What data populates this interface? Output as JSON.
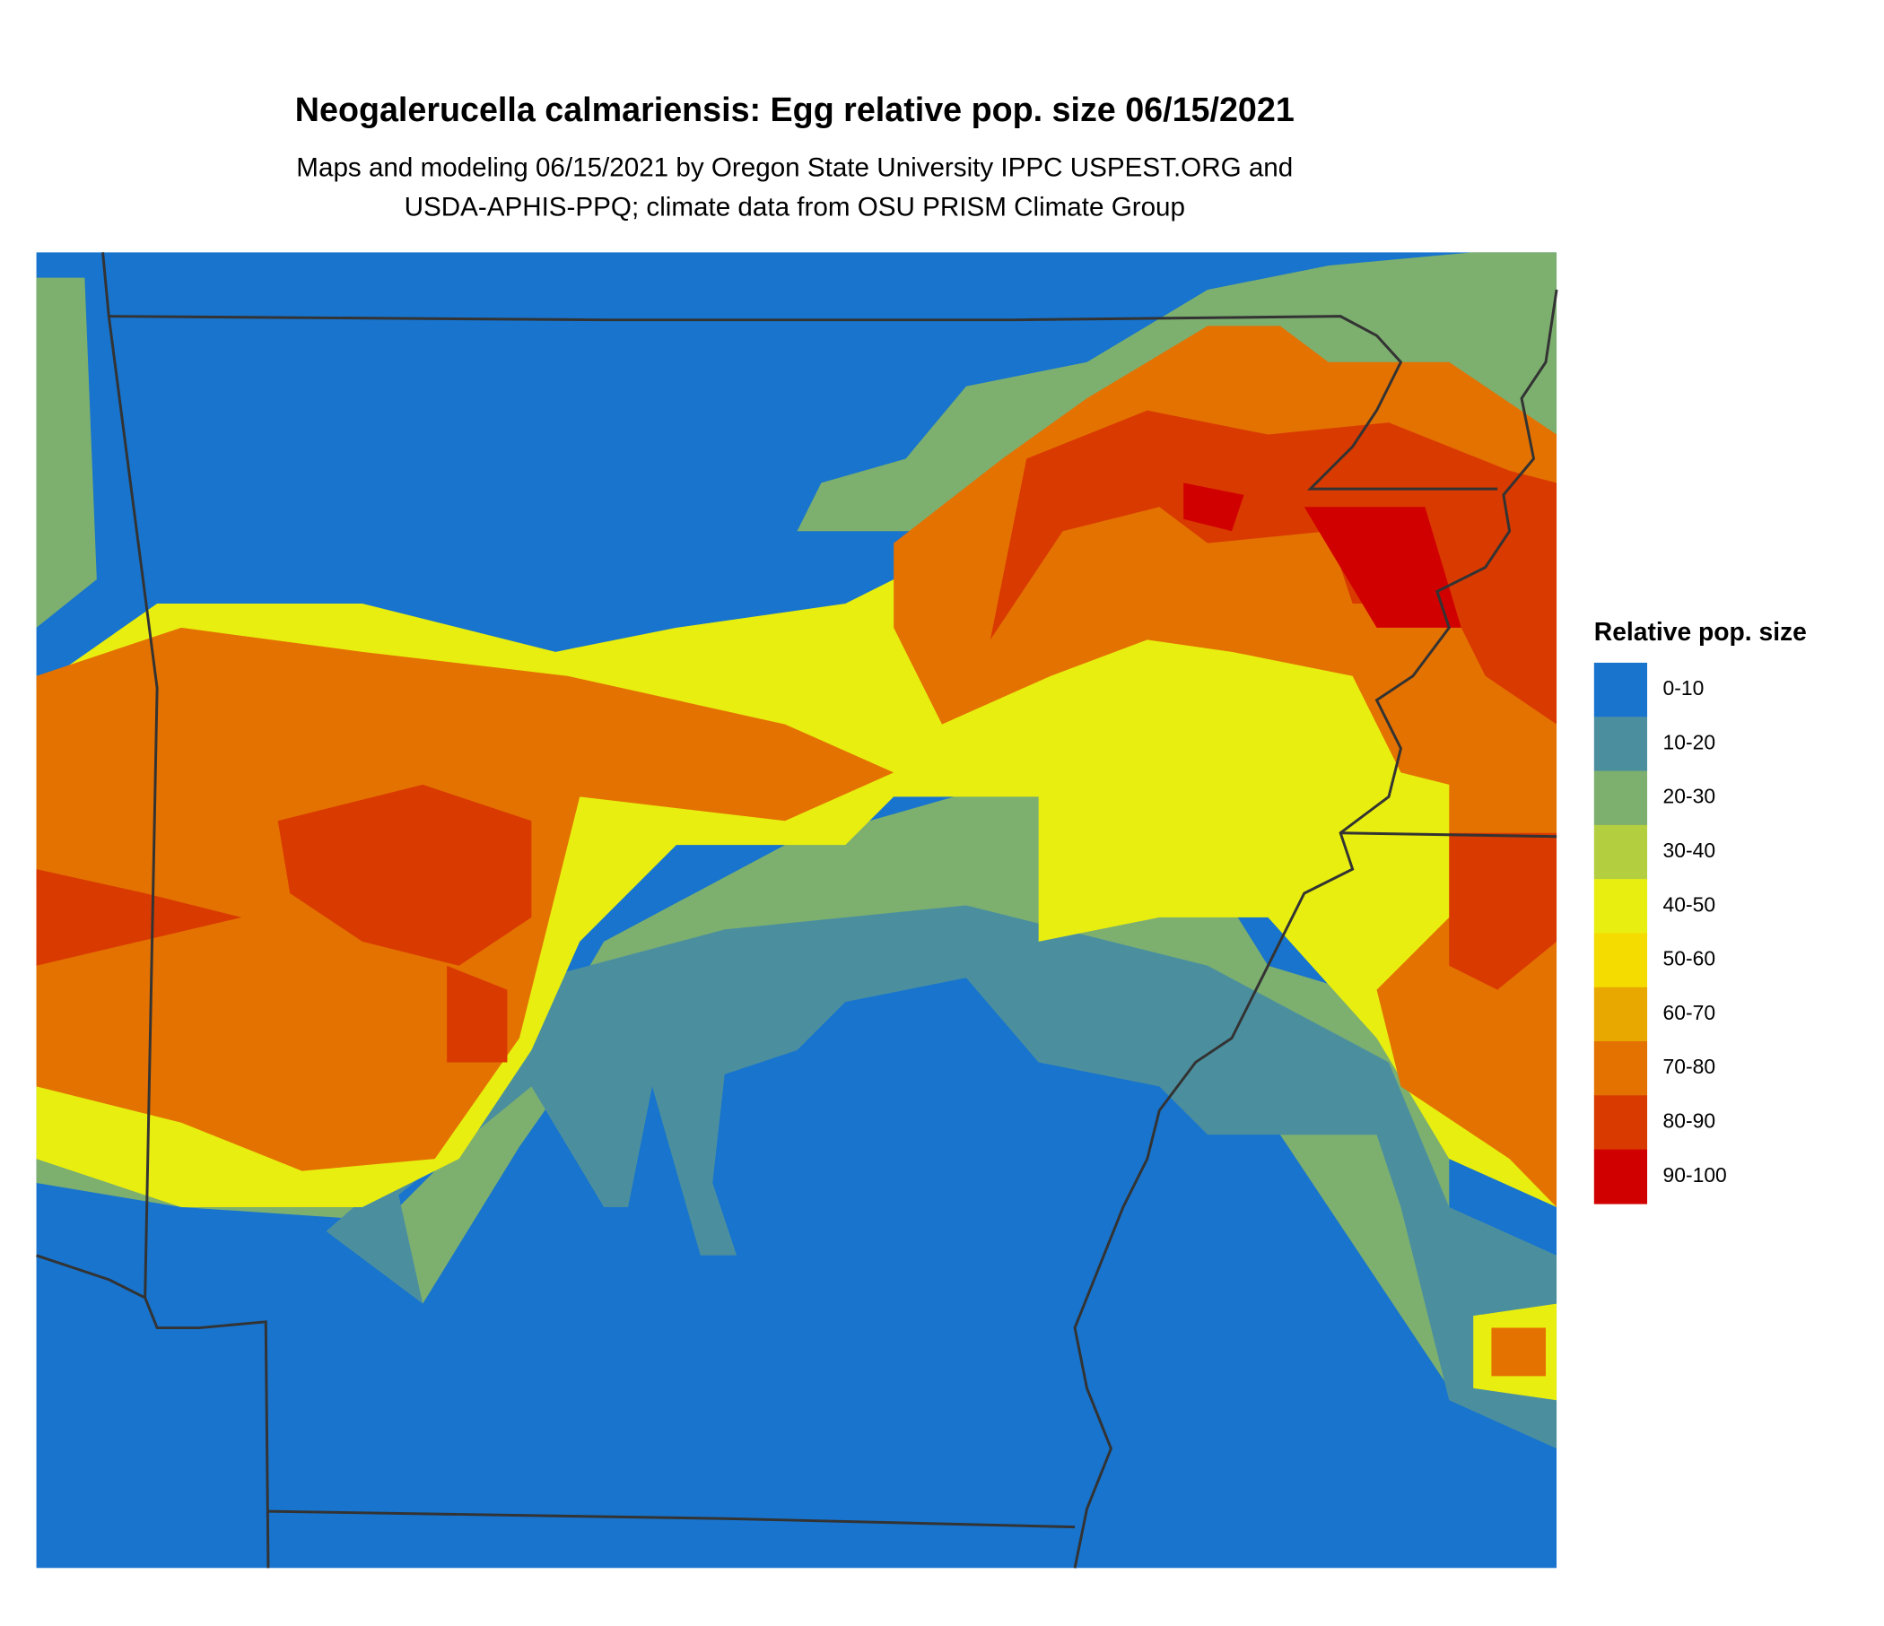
{
  "title": "Neogalerucella calmariensis: Egg relative pop. size 06/15/2021",
  "subtitle": [
    "Maps and modeling 06/15/2021 by Oregon State University IPPC USPEST.ORG and",
    "USDA-APHIS-PPQ; climate data from OSU PRISM Climate Group"
  ],
  "legend": {
    "title": "Relative pop. size",
    "items": [
      {
        "label": "0-10",
        "color": "#1874CD"
      },
      {
        "label": "10-20",
        "color": "#4B8F9F"
      },
      {
        "label": "20-30",
        "color": "#7DAF6F"
      },
      {
        "label": "30-40",
        "color": "#B3CF3F"
      },
      {
        "label": "40-50",
        "color": "#E8EE10"
      },
      {
        "label": "50-60",
        "color": "#F5DC00"
      },
      {
        "label": "60-70",
        "color": "#E8A800"
      },
      {
        "label": "70-80",
        "color": "#E47200"
      },
      {
        "label": "80-90",
        "color": "#D93A00"
      },
      {
        "label": "90-100",
        "color": "#D10000"
      }
    ]
  }
}
